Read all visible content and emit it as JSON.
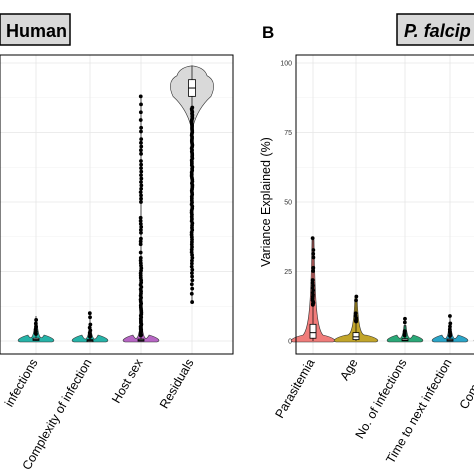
{
  "chart_data": [
    {
      "type": "violin",
      "panel": "",
      "title": "Human",
      "xlabel": "",
      "ylabel": "",
      "ylim": [
        0,
        100
      ],
      "grid": true,
      "categories": [
        "No. of infections",
        "Complexity of infection",
        "Host sex",
        "Residuals"
      ],
      "category_labels": [
        "infections",
        "Complexity of infection",
        "Host sex",
        "Residuals"
      ],
      "series": [
        {
          "category": "No. of infections",
          "color": "#26b3a8",
          "median": 0.5,
          "q1": 0.2,
          "q3": 1.0,
          "whisker_high": 2.5,
          "max": 9
        },
        {
          "category": "Complexity of infection",
          "color": "#26b3a8",
          "median": 0.2,
          "q1": 0.1,
          "q3": 0.5,
          "whisker_high": 1.5,
          "max": 10
        },
        {
          "category": "Host sex",
          "color": "#b766c4",
          "median": 0.3,
          "q1": 0.1,
          "q3": 0.7,
          "whisker_high": 2,
          "max": 88
        },
        {
          "category": "Residuals",
          "color": "#d9d9d9",
          "median": 91,
          "q1": 88,
          "q3": 94,
          "whisker_high": 99,
          "max": 99,
          "min": 14
        }
      ]
    },
    {
      "type": "violin",
      "panel": "B",
      "title": "P. falcip",
      "xlabel": "",
      "ylabel": "Variance Explained (%)",
      "ylim": [
        0,
        100
      ],
      "yticks": [
        0,
        25,
        50,
        75,
        100
      ],
      "grid": true,
      "categories": [
        "Parasitemia",
        "Age",
        "No. of infections",
        "Time to next infection",
        "Complexity"
      ],
      "category_labels": [
        "Parasitemia",
        "Age",
        "No. of infections",
        "Time to next infection",
        "Complexit"
      ],
      "series": [
        {
          "category": "Parasitemia",
          "color": "#f07c7a",
          "median": 3,
          "q1": 1,
          "q3": 6,
          "whisker_high": 13,
          "max": 37
        },
        {
          "category": "Age",
          "color": "#c2a52a",
          "median": 1.5,
          "q1": 0.5,
          "q3": 3,
          "whisker_high": 7,
          "max": 16
        },
        {
          "category": "No. of infections",
          "color": "#2aa877",
          "median": 0.3,
          "q1": 0.1,
          "q3": 0.8,
          "whisker_high": 2,
          "max": 8
        },
        {
          "category": "Time to next infection",
          "color": "#2aa5c8",
          "median": 0.3,
          "q1": 0.1,
          "q3": 0.7,
          "whisker_high": 1.8,
          "max": 9
        },
        {
          "category": "Complexity",
          "color": "#7b8fe0",
          "median": 0.5,
          "q1": 0.1,
          "q3": 1.0,
          "whisker_high": 2,
          "max": 5
        }
      ]
    }
  ]
}
